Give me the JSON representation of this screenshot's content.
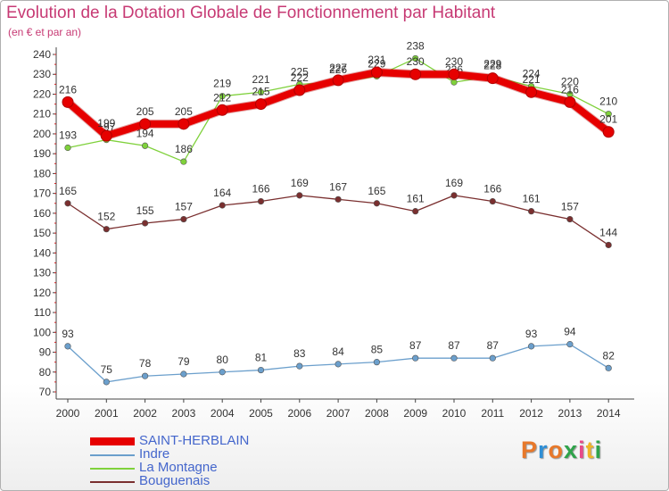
{
  "header": {
    "title": "Evolution de la Dotation Globale de Fonctionnement par Habitant",
    "subtitle": "(en € et par an)"
  },
  "logo": {
    "text": "Proxiti",
    "colors": [
      "#e8782a",
      "#2f8fd6",
      "#e8782a",
      "#2fa34a",
      "#e84a8a",
      "#f0b428",
      "#2fa34a"
    ]
  },
  "chart_data": {
    "type": "line",
    "categories": [
      "2000",
      "2001",
      "2002",
      "2003",
      "2004",
      "2005",
      "2006",
      "2007",
      "2008",
      "2009",
      "2010",
      "2011",
      "2012",
      "2013",
      "2014"
    ],
    "ylim": [
      70,
      240
    ],
    "yticks": [
      70,
      80,
      90,
      100,
      110,
      120,
      130,
      140,
      150,
      160,
      170,
      180,
      190,
      200,
      210,
      220,
      230,
      240
    ],
    "grid": false,
    "legend_position": "bottom-left",
    "series": [
      {
        "name": "Bouguenais",
        "color": "#7a2f2f",
        "values": [
          165,
          152,
          155,
          157,
          164,
          166,
          169,
          167,
          165,
          161,
          169,
          166,
          161,
          157,
          144
        ]
      },
      {
        "name": "Indre",
        "color": "#6b9fcc",
        "values": [
          93,
          75,
          78,
          79,
          80,
          81,
          83,
          84,
          85,
          87,
          87,
          87,
          93,
          94,
          82
        ]
      },
      {
        "name": "La Montagne",
        "color": "#7fd13b",
        "values": [
          193,
          197,
          194,
          186,
          219,
          221,
          225,
          226,
          229,
          238,
          226,
          229,
          224,
          220,
          210
        ]
      },
      {
        "name": "SAINT-HERBLAIN",
        "color": "#e60000",
        "values": [
          216,
          199,
          205,
          205,
          212,
          215,
          222,
          227,
          231,
          230,
          230,
          228,
          221,
          216,
          201
        ]
      }
    ]
  },
  "legend": [
    {
      "name": "SAINT-HERBLAIN",
      "color": "#e60000",
      "thick": true
    },
    {
      "name": "Indre",
      "color": "#6b9fcc",
      "thick": false
    },
    {
      "name": "La Montagne",
      "color": "#7fd13b",
      "thick": false
    },
    {
      "name": "Bouguenais",
      "color": "#7a2f2f",
      "thick": false
    }
  ]
}
